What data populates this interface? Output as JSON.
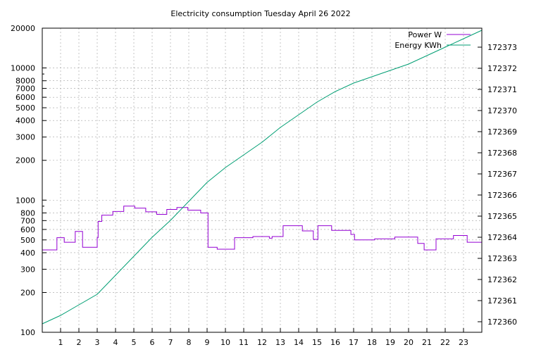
{
  "chart_data": {
    "type": "line",
    "title": "Electricity consumption Tuesday April 26 2022",
    "xlabel": "",
    "ylabel": "",
    "y2label": "",
    "x_ticks": [
      "1",
      "2",
      "3",
      "4",
      "5",
      "6",
      "7",
      "8",
      "9",
      "10",
      "11",
      "12",
      "13",
      "14",
      "15",
      "16",
      "17",
      "18",
      "19",
      "20",
      "21",
      "22",
      "23"
    ],
    "xlim": [
      0,
      24
    ],
    "y_scale": "log",
    "ylim": [
      100,
      20000
    ],
    "y_ticks": [
      "100",
      "200",
      "300",
      "400",
      "500",
      "600",
      "700",
      "800",
      "1000",
      "2000",
      "3000",
      "4000",
      "5000",
      "6000",
      "7000",
      "8000",
      "10000",
      "20000"
    ],
    "y2lim": [
      172359.5,
      172373.9
    ],
    "y2_ticks": [
      "172360",
      "172361",
      "172362",
      "172363",
      "172364",
      "172365",
      "172366",
      "172367",
      "172368",
      "172369",
      "172370",
      "172371",
      "172372",
      "172373"
    ],
    "grid": true,
    "legend_position": "top-right",
    "series": [
      {
        "name": "Power W",
        "axis": "left",
        "style": "steps",
        "color": "#9400d3",
        "x": [
          0,
          0.8,
          1.2,
          1.8,
          2.2,
          3,
          3.05,
          3.25,
          3.85,
          4.45,
          5.05,
          5.65,
          6.25,
          6.8,
          7.35,
          7.95,
          8.65,
          9.05,
          9.55,
          10.5,
          11.5,
          12.4,
          12.55,
          13.15,
          14.2,
          14.8,
          15.05,
          15.8,
          16.85,
          17.05,
          18.15,
          19.25,
          20.5,
          20.85,
          21.5,
          22.45,
          23.2
        ],
        "y": [
          420,
          520,
          480,
          580,
          440,
          520,
          690,
          770,
          820,
          900,
          870,
          815,
          780,
          850,
          880,
          840,
          800,
          440,
          425,
          520,
          530,
          515,
          530,
          640,
          585,
          505,
          640,
          590,
          550,
          500,
          510,
          525,
          470,
          420,
          510,
          540,
          480
        ]
      },
      {
        "name": "Energy KWh",
        "axis": "right",
        "style": "line",
        "color": "#009e73",
        "x": [
          0,
          1,
          2,
          3,
          4,
          5,
          6,
          7,
          8,
          9,
          10,
          11,
          12,
          13,
          14,
          15,
          16,
          17,
          18,
          19,
          20,
          21,
          22,
          23,
          24
        ],
        "y": [
          172359.9,
          172360.3,
          172360.8,
          172361.3,
          172362.2,
          172363.1,
          172364.0,
          172364.8,
          172365.7,
          172366.6,
          172367.3,
          172367.9,
          172368.5,
          172369.2,
          172369.8,
          172370.4,
          172370.9,
          172371.3,
          172371.6,
          172371.9,
          172372.2,
          172372.6,
          172373.0,
          172373.4,
          172373.8
        ]
      }
    ]
  }
}
